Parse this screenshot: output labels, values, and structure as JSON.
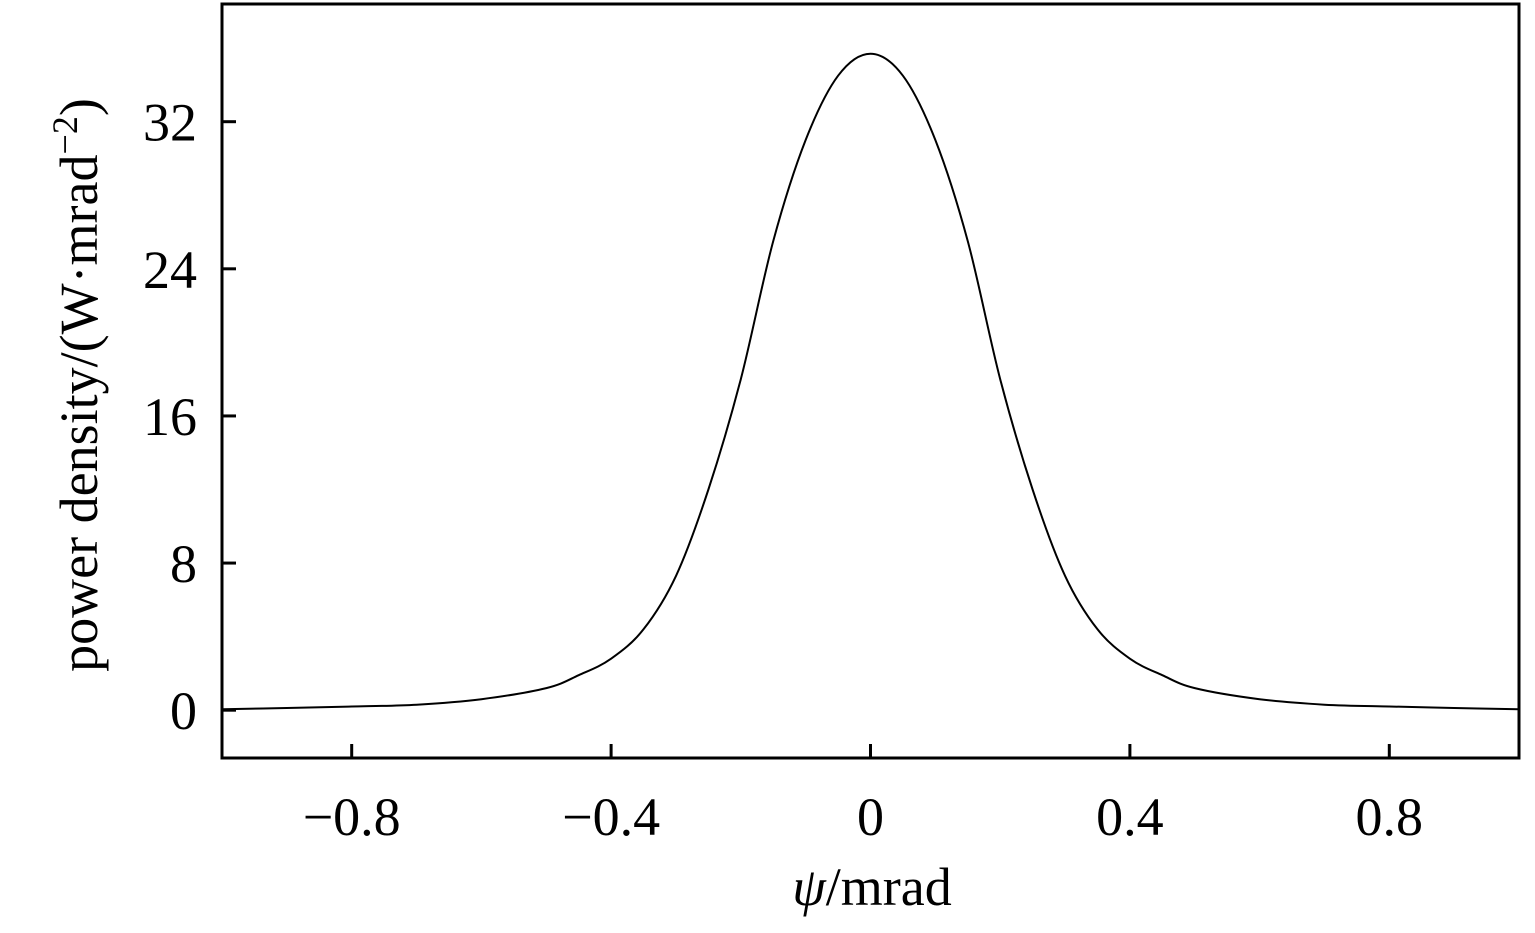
{
  "chart_data": {
    "type": "line",
    "title": "",
    "xlabel": "ψ/mrad",
    "xlabel_parts": {
      "symbol": "ψ",
      "rest": "/mrad"
    },
    "ylabel": "power density/(W·mrad⁻²)",
    "ylabel_parts": {
      "main": "power density/(W·mrad",
      "sup": "−2",
      "close": ")"
    },
    "xlim": [
      -1.0,
      1.0
    ],
    "ylim": [
      -2.6,
      38.4
    ],
    "xticks": [
      -0.8,
      -0.4,
      0,
      0.4,
      0.8
    ],
    "xtick_labels": [
      "−0.8",
      "−0.4",
      "0",
      "0.4",
      "0.8"
    ],
    "yticks": [
      0,
      8,
      16,
      24,
      32
    ],
    "ytick_labels": [
      "0",
      "8",
      "16",
      "24",
      "32"
    ],
    "grid": false,
    "series": [
      {
        "x": [
          -1.0,
          -0.9,
          -0.8,
          -0.7,
          -0.6,
          -0.5,
          -0.45,
          -0.4,
          -0.35,
          -0.3,
          -0.25,
          -0.2,
          -0.15,
          -0.1,
          -0.05,
          0,
          0.05,
          0.1,
          0.15,
          0.2,
          0.25,
          0.3,
          0.35,
          0.4,
          0.45,
          0.5,
          0.6,
          0.7,
          0.8,
          0.9,
          1.0
        ],
        "y": [
          0.05,
          0.12,
          0.2,
          0.3,
          0.6,
          1.2,
          1.9,
          2.8,
          4.4,
          7.3,
          12.0,
          18.0,
          25.5,
          31.0,
          34.5,
          35.7,
          34.5,
          31.0,
          25.5,
          18.0,
          12.0,
          7.3,
          4.4,
          2.8,
          1.9,
          1.2,
          0.6,
          0.3,
          0.2,
          0.12,
          0.05
        ],
        "color": "#000000"
      }
    ]
  }
}
